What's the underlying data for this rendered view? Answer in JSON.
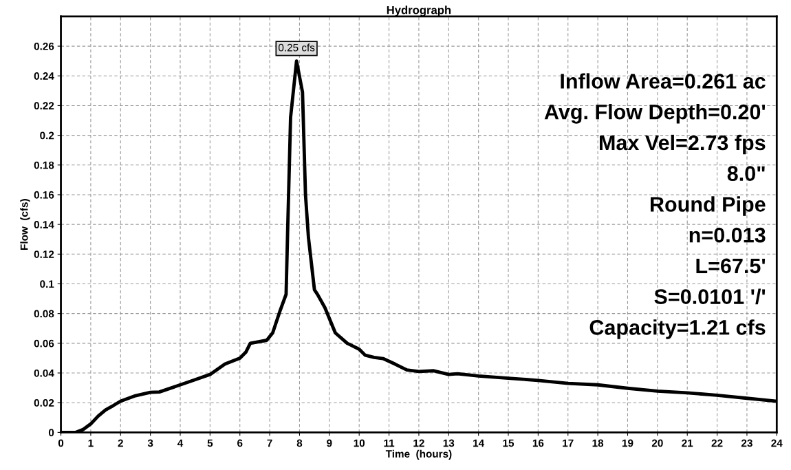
{
  "chart_data": {
    "type": "line",
    "title": "Hydrograph",
    "xlabel": "Time  (hours)",
    "ylabel": "Flow  (cfs)",
    "xlim": [
      0,
      24
    ],
    "xticks": [
      0,
      1,
      2,
      3,
      4,
      5,
      6,
      7,
      8,
      9,
      10,
      11,
      12,
      13,
      14,
      15,
      16,
      17,
      18,
      19,
      20,
      21,
      22,
      23,
      24
    ],
    "ylim": [
      0,
      0.28
    ],
    "yticks": [
      0,
      0.02,
      0.04,
      0.06,
      0.08,
      0.1,
      0.12,
      0.14,
      0.16,
      0.18,
      0.2,
      0.22,
      0.24,
      0.26
    ],
    "grid": true,
    "legend": false,
    "marker": "none",
    "line_style": "solid",
    "series": [
      {
        "color": "#000000",
        "x": [
          0,
          0.5,
          0.75,
          1,
          1.25,
          1.5,
          1.75,
          2,
          2.5,
          3,
          3.3,
          4,
          4.5,
          5,
          5.5,
          6,
          6.2,
          6.35,
          6.9,
          7.1,
          7.35,
          7.55,
          7.6,
          7.7,
          7.9,
          8.1,
          8.2,
          8.3,
          8.5,
          8.6,
          8.85,
          9.2,
          9.6,
          10,
          10.2,
          10.5,
          10.8,
          11.2,
          11.6,
          12,
          12.5,
          13,
          13.3,
          14,
          15,
          16,
          17,
          18,
          19,
          20,
          21,
          22,
          23,
          24
        ],
        "values": [
          0,
          0,
          0.002,
          0.0057,
          0.011,
          0.0152,
          0.018,
          0.021,
          0.0247,
          0.027,
          0.0272,
          0.032,
          0.0355,
          0.039,
          0.046,
          0.05,
          0.054,
          0.06,
          0.062,
          0.067,
          0.082,
          0.093,
          0.134,
          0.212,
          0.25,
          0.229,
          0.16,
          0.131,
          0.096,
          0.093,
          0.084,
          0.067,
          0.06,
          0.056,
          0.052,
          0.0505,
          0.0497,
          0.046,
          0.042,
          0.041,
          0.0415,
          0.039,
          0.0395,
          0.038,
          0.0365,
          0.035,
          0.033,
          0.032,
          0.0297,
          0.0278,
          0.0266,
          0.025,
          0.023,
          0.021
        ]
      }
    ],
    "annotations": [
      {
        "text": "0.25 cfs",
        "x": 7.9,
        "y": 0.25
      },
      "Inflow Area=0.261 ac",
      "Avg. Flow Depth=0.20'",
      "Max Vel=2.73 fps",
      "8.0\"",
      "Round Pipe",
      "n=0.013",
      "L=67.5'",
      "S=0.0101 '/'",
      "Capacity=1.21 cfs"
    ]
  }
}
